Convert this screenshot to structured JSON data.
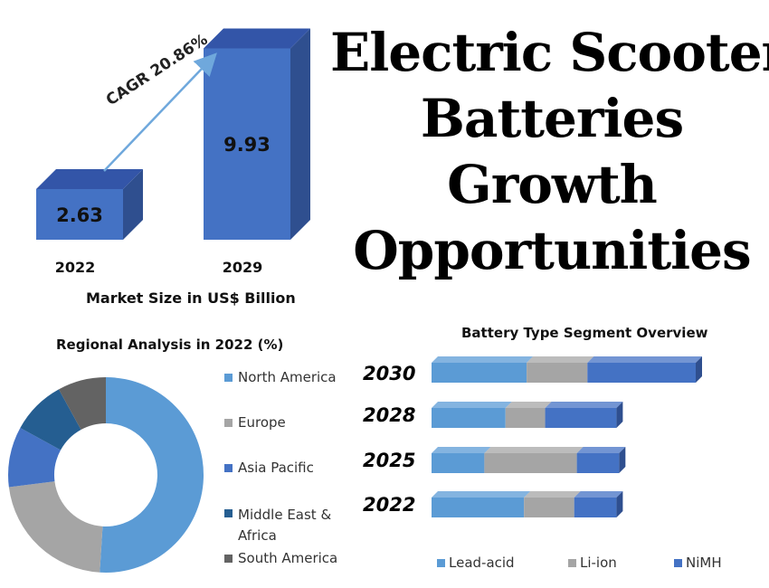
{
  "title": {
    "lines": [
      "Electric Scooter",
      "Batteries",
      "Growth",
      "Opportunities"
    ]
  },
  "colors": {
    "bar_front": "#4472c4",
    "bar_side": "#2f4f8f",
    "bar_top": "#3355a8",
    "cagr_arrow": "#6fa8dc",
    "north_america": "#5b9bd5",
    "europe": "#a5a5a5",
    "asia_pacific": "#4472c4",
    "middle_east_africa": "#255e91",
    "south_america": "#636363",
    "lead_acid": "#5b9bd5",
    "li_ion": "#a5a5a5",
    "nimh": "#4472c4"
  },
  "chart_data": [
    {
      "type": "bar",
      "title": "",
      "xlabel": "Market Size in US$ Billion",
      "ylabel": "",
      "categories": [
        "2022",
        "2029"
      ],
      "values": [
        2.63,
        9.93
      ],
      "annotation": "CAGR 20.86%"
    },
    {
      "type": "pie",
      "title": "Regional Analysis in 2022 (%)",
      "style": "donut",
      "labels": [
        "North America",
        "Europe",
        "Asia Pacific",
        "Middle East & Africa",
        "South America"
      ],
      "values": [
        51,
        22,
        10,
        9,
        8
      ]
    },
    {
      "type": "bar",
      "orientation": "horizontal",
      "stacked": true,
      "title": "Battery Type Segment Overview",
      "categories": [
        "2030",
        "2028",
        "2025",
        "2022"
      ],
      "series": [
        {
          "name": "Lead-acid",
          "values": [
            36,
            28,
            20,
            35
          ]
        },
        {
          "name": "Li-ion",
          "values": [
            23,
            15,
            35,
            19
          ]
        },
        {
          "name": "NiMH",
          "values": [
            41,
            27,
            16,
            16
          ]
        }
      ],
      "legend": "bottom"
    }
  ]
}
